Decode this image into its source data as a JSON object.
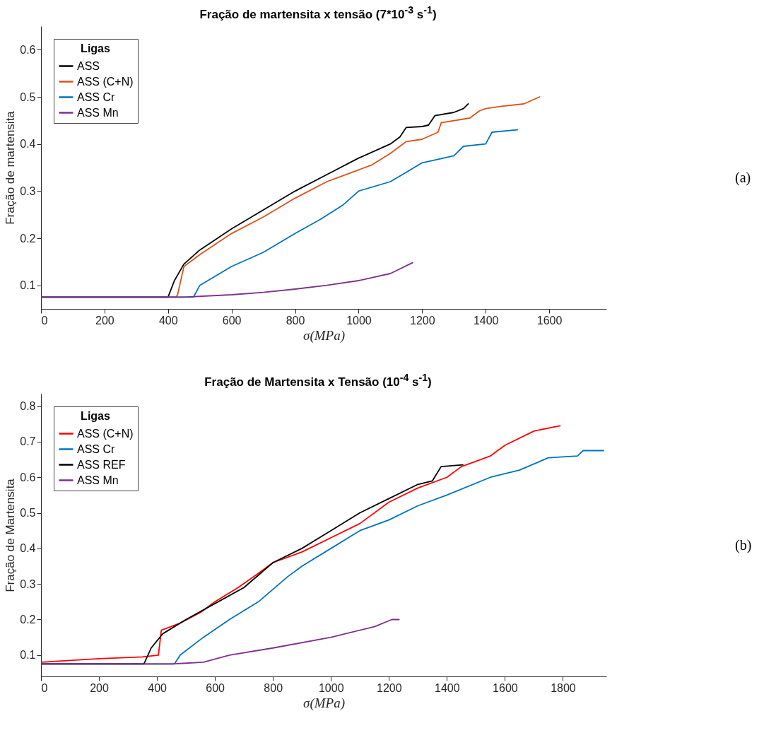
{
  "chart_data": [
    {
      "type": "line",
      "title": "Fração de martensita x tensão (7*10$^{-3}$ s$^{-1}$)",
      "xlabel": "σ(MPa)",
      "ylabel": "Fração de martensita",
      "legend_title": "Ligas",
      "legend": "top left",
      "grid": false,
      "annotations": [
        "(a)"
      ],
      "xlim": [
        0,
        1780
      ],
      "xticks": [
        0,
        200,
        400,
        600,
        800,
        1000,
        1200,
        1400,
        1600
      ],
      "ylim": [
        0.05,
        0.65
      ],
      "yticks": [
        0.1,
        0.2,
        0.3,
        0.4,
        0.5,
        0.6
      ],
      "series": [
        {
          "name": "ASS",
          "color": "#000000",
          "x": [
            0,
            400,
            420,
            450,
            500,
            600,
            700,
            800,
            900,
            1000,
            1100,
            1130,
            1150,
            1200,
            1220,
            1240,
            1300,
            1330,
            1345
          ],
          "values": [
            0.075,
            0.075,
            0.11,
            0.145,
            0.175,
            0.22,
            0.26,
            0.3,
            0.335,
            0.37,
            0.4,
            0.415,
            0.435,
            0.437,
            0.44,
            0.46,
            0.467,
            0.475,
            0.485
          ]
        },
        {
          "name": "ASS (C+N)",
          "color": "#d95319",
          "x": [
            0,
            200,
            425,
            430,
            450,
            500,
            600,
            700,
            800,
            900,
            1000,
            1040,
            1100,
            1150,
            1200,
            1250,
            1260,
            1350,
            1380,
            1400,
            1450,
            1520,
            1570
          ],
          "values": [
            0.075,
            0.075,
            0.075,
            0.08,
            0.14,
            0.165,
            0.21,
            0.245,
            0.285,
            0.32,
            0.345,
            0.355,
            0.38,
            0.405,
            0.41,
            0.425,
            0.445,
            0.455,
            0.47,
            0.475,
            0.48,
            0.485,
            0.5
          ]
        },
        {
          "name": "ASS Cr",
          "color": "#0072bd",
          "x": [
            0,
            200,
            480,
            500,
            600,
            700,
            800,
            880,
            950,
            1000,
            1100,
            1150,
            1200,
            1300,
            1330,
            1400,
            1420,
            1500
          ],
          "values": [
            0.075,
            0.075,
            0.075,
            0.1,
            0.14,
            0.17,
            0.21,
            0.24,
            0.27,
            0.3,
            0.32,
            0.34,
            0.36,
            0.375,
            0.395,
            0.4,
            0.425,
            0.43
          ]
        },
        {
          "name": "ASS Mn",
          "color": "#7e2f8e",
          "x": [
            0,
            200,
            450,
            600,
            700,
            800,
            900,
            1000,
            1100,
            1170
          ],
          "values": [
            0.075,
            0.075,
            0.075,
            0.08,
            0.085,
            0.092,
            0.1,
            0.11,
            0.125,
            0.148
          ]
        }
      ]
    },
    {
      "type": "line",
      "title": "Fração de Martensita x Tensão (10$^{-4}$ s$^{-1}$)",
      "xlabel": "σ(MPa)",
      "ylabel": "Fração de Martensita",
      "legend_title": "Ligas",
      "legend": "top left",
      "grid": false,
      "annotations": [
        "(b)"
      ],
      "xlim": [
        0,
        1950
      ],
      "xticks": [
        0,
        200,
        400,
        600,
        800,
        1000,
        1200,
        1400,
        1600,
        1800
      ],
      "ylim": [
        0.04,
        0.835
      ],
      "yticks": [
        0.1,
        0.2,
        0.3,
        0.4,
        0.5,
        0.6,
        0.7,
        0.8
      ],
      "series": [
        {
          "name": "ASS (C+N)",
          "color": "#ff0000",
          "x": [
            0,
            200,
            350,
            405,
            415,
            480,
            550,
            600,
            680,
            750,
            800,
            900,
            1000,
            1100,
            1200,
            1300,
            1400,
            1450,
            1550,
            1600,
            1700,
            1790
          ],
          "values": [
            0.08,
            0.09,
            0.095,
            0.1,
            0.17,
            0.19,
            0.22,
            0.25,
            0.29,
            0.33,
            0.36,
            0.39,
            0.43,
            0.47,
            0.53,
            0.57,
            0.6,
            0.63,
            0.66,
            0.69,
            0.73,
            0.745
          ]
        },
        {
          "name": "ASS Cr",
          "color": "#0072bd",
          "x": [
            0,
            200,
            460,
            480,
            560,
            650,
            750,
            850,
            900,
            1000,
            1100,
            1200,
            1300,
            1400,
            1550,
            1650,
            1750,
            1850,
            1870,
            1940
          ],
          "values": [
            0.075,
            0.075,
            0.075,
            0.1,
            0.15,
            0.2,
            0.25,
            0.32,
            0.35,
            0.4,
            0.45,
            0.48,
            0.52,
            0.55,
            0.6,
            0.62,
            0.655,
            0.66,
            0.675,
            0.675
          ]
        },
        {
          "name": "ASS REF",
          "color": "#000000",
          "x": [
            0,
            200,
            355,
            380,
            420,
            500,
            600,
            700,
            800,
            900,
            1000,
            1100,
            1200,
            1300,
            1350,
            1380,
            1455
          ],
          "values": [
            0.075,
            0.075,
            0.075,
            0.12,
            0.16,
            0.2,
            0.245,
            0.29,
            0.36,
            0.4,
            0.45,
            0.5,
            0.54,
            0.58,
            0.59,
            0.63,
            0.635
          ]
        },
        {
          "name": "ASS Mn",
          "color": "#7e2f8e",
          "x": [
            0,
            200,
            450,
            560,
            650,
            800,
            1000,
            1150,
            1210,
            1235
          ],
          "values": [
            0.075,
            0.075,
            0.075,
            0.08,
            0.1,
            0.12,
            0.15,
            0.18,
            0.2,
            0.2
          ]
        }
      ]
    }
  ]
}
